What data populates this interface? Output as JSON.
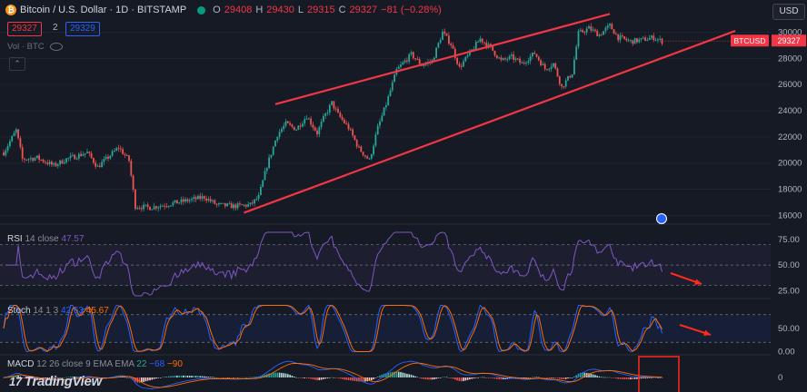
{
  "header": {
    "title": "Bitcoin / U.S. Dollar · 1D · BITSTAMP",
    "ohlc": [
      {
        "label": "O",
        "value": "29408"
      },
      {
        "label": "H",
        "value": "29430"
      },
      {
        "label": "L",
        "value": "29315"
      },
      {
        "label": "C",
        "value": "29327"
      }
    ],
    "change": "−81 (−0.28%)",
    "bid": "29327",
    "spread": "2",
    "ask": "29329",
    "volume_label": "Vol · BTC",
    "currency": "USD"
  },
  "indicators": {
    "rsi": {
      "name": "RSI",
      "params": "14 close",
      "value": "47.57"
    },
    "stoch": {
      "name": "Stoch",
      "params": "14 1 3",
      "k": "42.63",
      "d": "45.67"
    },
    "macd": {
      "name": "MACD",
      "params": "12 26 close 9 EMA EMA",
      "hist": "22",
      "macd": "−68",
      "signal": "−90"
    }
  },
  "symbol_tag": "BTCUSD",
  "last_price_label": "29327",
  "watermark": "TradingView",
  "colors": {
    "up": "#26a69a",
    "down": "#ef5350",
    "rsi": "#7e57c2",
    "annotation": "#ff2a1a",
    "macd": "#2962ff",
    "signal": "#ff6d00"
  },
  "chart_data": {
    "type": "candlestick",
    "price_axis": {
      "ticks": [
        "30000",
        "28000",
        "26000",
        "24000",
        "22000",
        "20000",
        "18000",
        "16000"
      ],
      "ylim": [
        15400,
        30800
      ]
    },
    "rsi_axis": {
      "ticks": [
        "75.00",
        "50.00",
        "25.00"
      ],
      "bands": [
        70,
        50,
        30
      ],
      "ylim": [
        20,
        82
      ]
    },
    "stoch_axis": {
      "ticks": [
        "50.00",
        "0.00"
      ],
      "bands": [
        80,
        20
      ],
      "ylim": [
        -5,
        105
      ]
    },
    "macd_axis": {
      "ticks": [
        "0"
      ]
    },
    "close_path": [
      [
        0,
        20800
      ],
      [
        6,
        22500
      ],
      [
        9,
        20300
      ],
      [
        16,
        20400
      ],
      [
        24,
        19800
      ],
      [
        30,
        20300
      ],
      [
        40,
        20800
      ],
      [
        45,
        19700
      ],
      [
        55,
        21200
      ],
      [
        60,
        20200
      ],
      [
        63,
        16700
      ],
      [
        70,
        16600
      ],
      [
        80,
        16900
      ],
      [
        90,
        17200
      ],
      [
        96,
        17400
      ],
      [
        102,
        16800
      ],
      [
        110,
        16700
      ],
      [
        118,
        16800
      ],
      [
        122,
        17400
      ],
      [
        126,
        19800
      ],
      [
        131,
        22200
      ],
      [
        135,
        23000
      ],
      [
        140,
        22600
      ],
      [
        145,
        23600
      ],
      [
        150,
        22300
      ],
      [
        153,
        23400
      ],
      [
        157,
        24600
      ],
      [
        160,
        23700
      ],
      [
        165,
        22700
      ],
      [
        170,
        21100
      ],
      [
        175,
        20200
      ],
      [
        179,
        22700
      ],
      [
        183,
        24500
      ],
      [
        188,
        27100
      ],
      [
        195,
        28300
      ],
      [
        200,
        27500
      ],
      [
        205,
        27800
      ],
      [
        210,
        30000
      ],
      [
        214,
        29100
      ],
      [
        218,
        27300
      ],
      [
        223,
        28400
      ],
      [
        228,
        29500
      ],
      [
        233,
        28800
      ],
      [
        238,
        27800
      ],
      [
        243,
        28100
      ],
      [
        248,
        27600
      ],
      [
        254,
        28400
      ],
      [
        259,
        27200
      ],
      [
        263,
        27600
      ],
      [
        267,
        25800
      ],
      [
        272,
        26900
      ],
      [
        275,
        29900
      ],
      [
        280,
        30300
      ],
      [
        285,
        29800
      ],
      [
        290,
        30500
      ],
      [
        294,
        29600
      ],
      [
        300,
        29300
      ],
      [
        305,
        29400
      ],
      [
        311,
        29600
      ],
      [
        315,
        29300
      ]
    ],
    "channel_lines": [
      {
        "from": [
          130,
          24500
        ],
        "to": [
          290,
          31400
        ]
      },
      {
        "from": [
          115,
          16200
        ],
        "to": [
          350,
          30100
        ]
      }
    ]
  }
}
